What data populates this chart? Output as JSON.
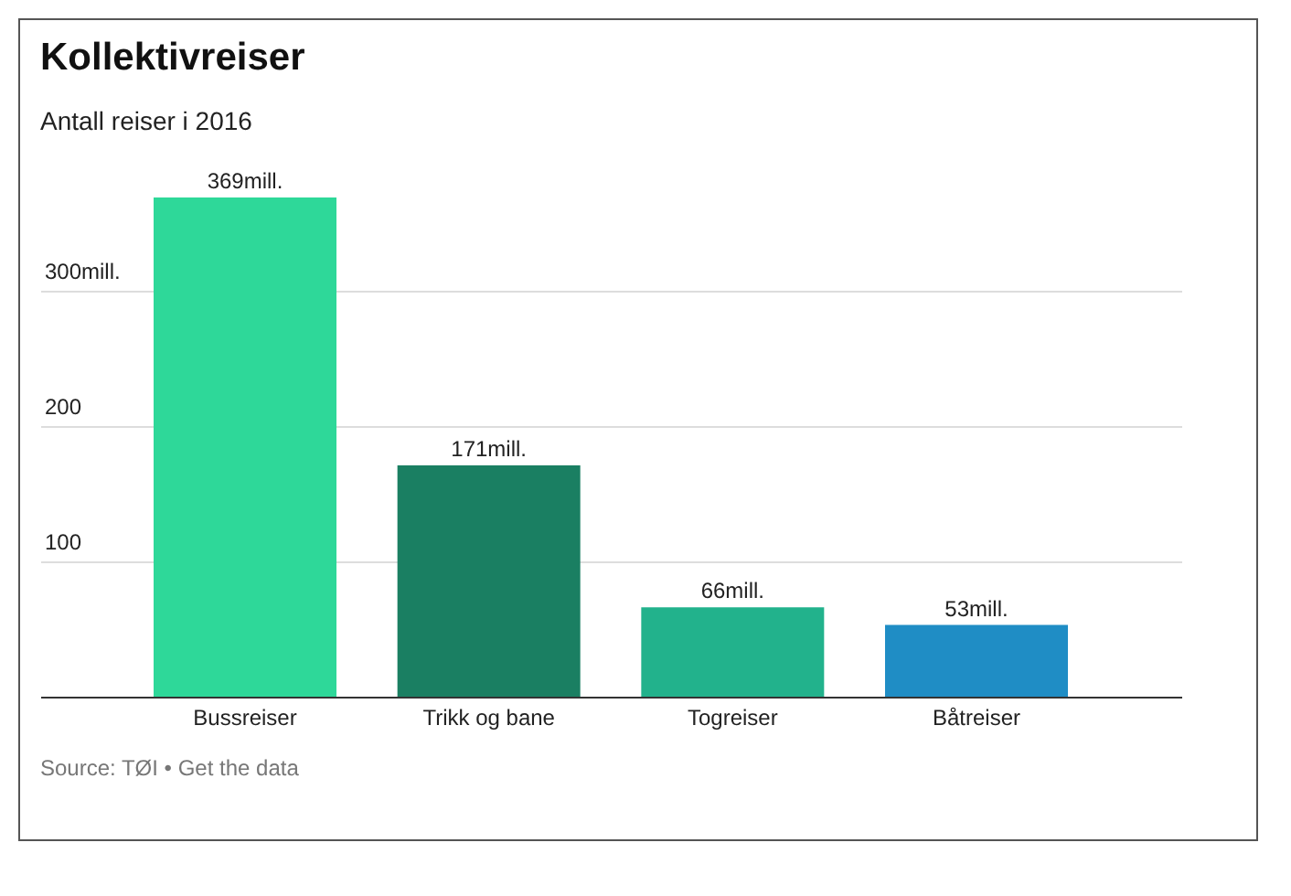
{
  "chart_data": {
    "type": "bar",
    "title": "Kollektivreiser",
    "subtitle": "Antall reiser i 2016",
    "categories": [
      "Bussreiser",
      "Trikk og bane",
      "Togreiser",
      "Båtreiser"
    ],
    "values": [
      369,
      171,
      66,
      53
    ],
    "colors": [
      "#2ed899",
      "#1a7f62",
      "#22b28c",
      "#1f8dc5"
    ],
    "value_labels": [
      "369mill.",
      "171mill.",
      "66mill.",
      "53mill."
    ],
    "ylim": [
      0,
      400
    ],
    "yticks": [
      100,
      200,
      {
        "value": 300,
        "label": "300mill."
      }
    ],
    "grid": "y",
    "annotations": [
      "Source: TØI • Get the data"
    ]
  }
}
